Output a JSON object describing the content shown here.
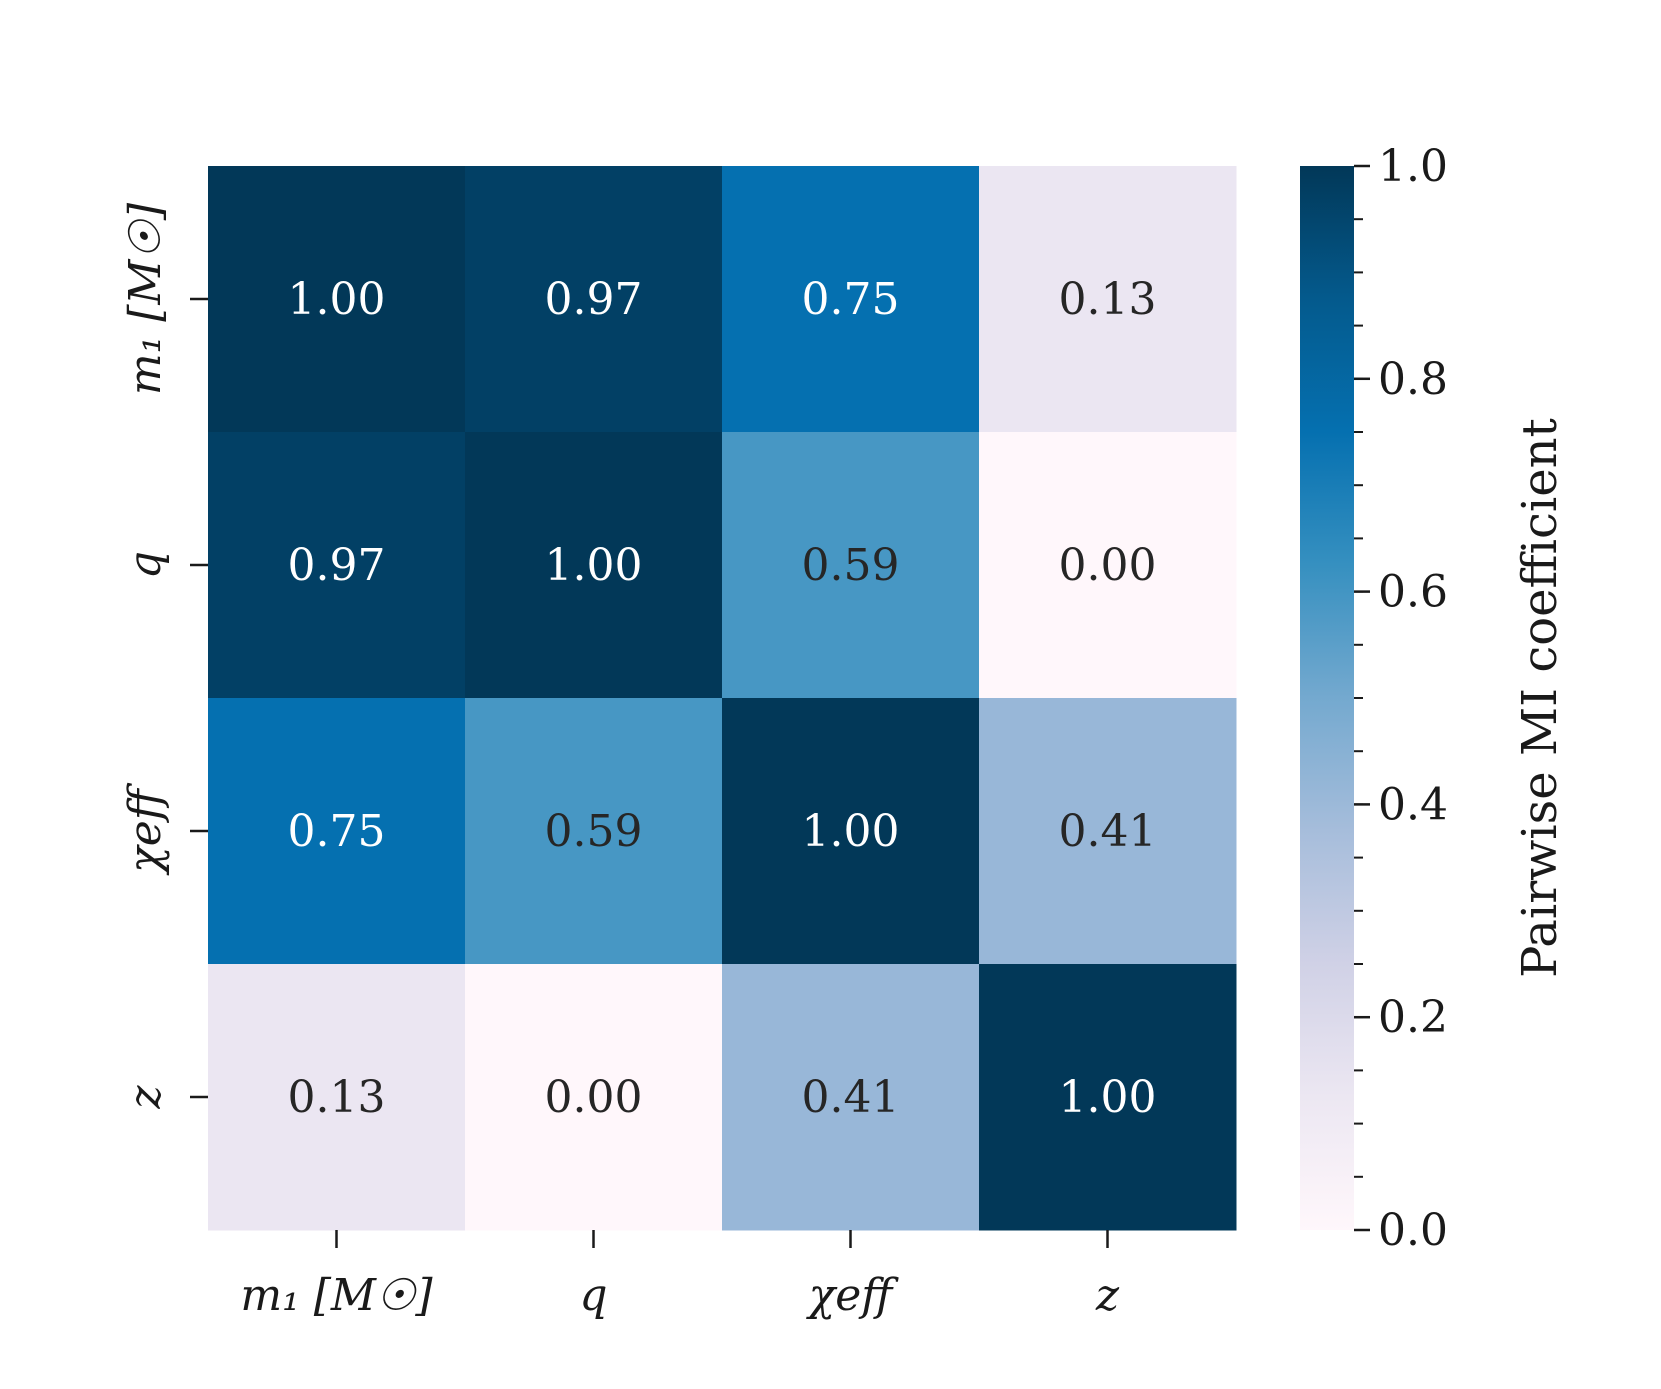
{
  "chart_data": {
    "type": "heatmap",
    "x_categories": [
      "m₁ [M☉]",
      "q",
      "χeff",
      "z"
    ],
    "y_categories": [
      "m₁ [M☉]",
      "q",
      "χeff",
      "z"
    ],
    "values": [
      [
        1.0,
        0.97,
        0.75,
        0.13
      ],
      [
        0.97,
        1.0,
        0.59,
        0.0
      ],
      [
        0.75,
        0.59,
        1.0,
        0.41
      ],
      [
        0.13,
        0.0,
        0.41,
        1.0
      ]
    ],
    "value_labels": [
      [
        "1.00",
        "0.97",
        "0.75",
        "0.13"
      ],
      [
        "0.97",
        "1.00",
        "0.59",
        "0.00"
      ],
      [
        "0.75",
        "0.59",
        "1.00",
        "0.41"
      ],
      [
        "0.13",
        "0.00",
        "0.41",
        "1.00"
      ]
    ],
    "colorbar": {
      "label": "Pairwise MI coefficient",
      "range": [
        0.0,
        1.0
      ],
      "ticks": [
        0.0,
        0.2,
        0.4,
        0.6,
        0.8,
        1.0
      ],
      "tick_labels": [
        "0.0",
        "0.2",
        "0.4",
        "0.6",
        "0.8",
        "1.0"
      ],
      "colormap": "PuBu",
      "colormap_stops": [
        "#fff7fb",
        "#ece7f2",
        "#d0d1e6",
        "#a6bddb",
        "#74a9cf",
        "#3690c0",
        "#0570b0",
        "#045a8d",
        "#023858"
      ]
    },
    "title": "",
    "xlabel": "",
    "ylabel": ""
  }
}
